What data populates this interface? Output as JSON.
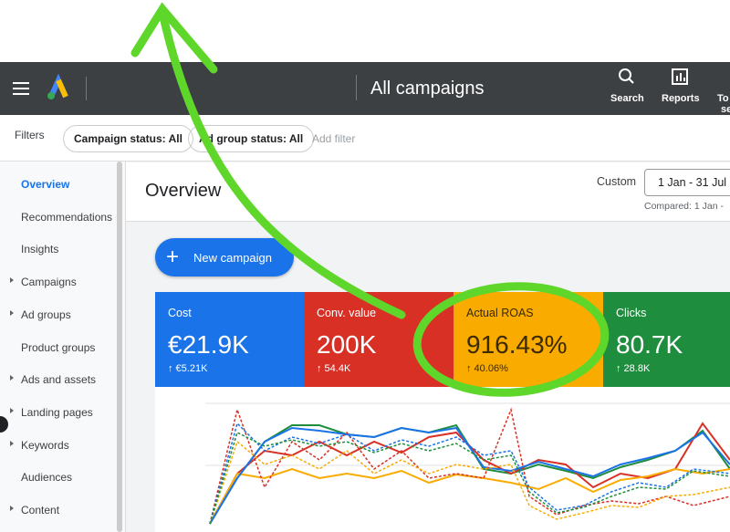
{
  "header": {
    "title": "All campaigns",
    "actions": [
      "Search",
      "Reports"
    ],
    "tools": [
      "To",
      "se"
    ]
  },
  "filters": {
    "label": "Filters",
    "chips": [
      "Campaign status: All",
      "Ad group status: All"
    ],
    "add": "Add filter"
  },
  "sidebar": {
    "items": [
      "Overview",
      "Recommendations",
      "Insights",
      "Campaigns",
      "Ad groups",
      "Product groups",
      "Ads and assets",
      "Landing pages",
      "Keywords",
      "Audiences",
      "Content"
    ]
  },
  "main": {
    "title": "Overview",
    "range_label": "Custom",
    "range": "1 Jan - 31 Jul",
    "compared": "Compared: 1 Jan -",
    "new_campaign": "New campaign",
    "cards": [
      {
        "label": "Cost",
        "value": "€21.9K",
        "delta": "↑ €5.21K"
      },
      {
        "label": "Conv. value",
        "value": "200K",
        "delta": "↑ 54.4K"
      },
      {
        "label": "Actual ROAS",
        "value": "916.43%",
        "delta": "↑ 40.06%"
      },
      {
        "label": "Clicks",
        "value": "80.7K",
        "delta": "↑ 28.8K"
      }
    ]
  }
}
